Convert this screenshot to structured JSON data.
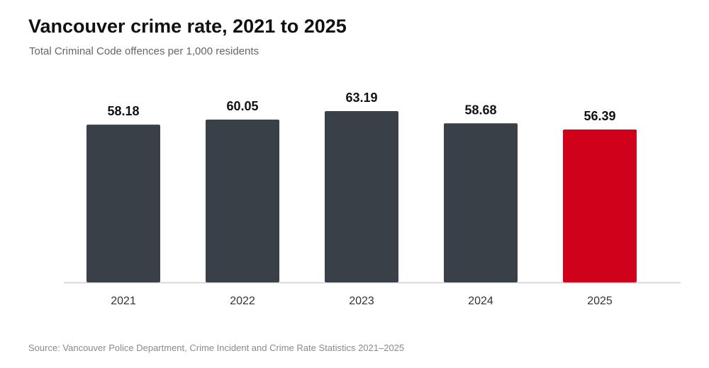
{
  "chart_data": {
    "type": "bar",
    "title": "Vancouver crime rate, 2021 to 2025",
    "subtitle": "Total Criminal Code offences per 1,000 residents",
    "xlabel": "",
    "ylabel": "",
    "categories": [
      "2021",
      "2022",
      "2023",
      "2024",
      "2025"
    ],
    "values": [
      58.18,
      60.05,
      63.19,
      58.68,
      56.39
    ],
    "value_labels": [
      "58.18",
      "60.05",
      "63.19",
      "58.68",
      "56.39"
    ],
    "ylim": [
      0,
      63.19
    ],
    "grid": false,
    "legend": "none",
    "colors": {
      "default_bar": "#3a4048",
      "highlight_bar": "#d0021b",
      "baseline": "#cfcfcf"
    },
    "highlight_index": 4
  },
  "source": "Source: Vancouver Police Department, Crime Incident and Crime Rate Statistics 2021–2025"
}
